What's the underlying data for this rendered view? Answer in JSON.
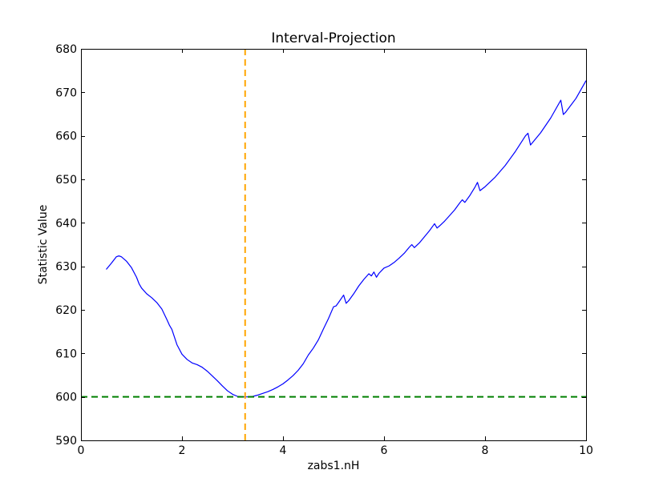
{
  "chart_data": {
    "type": "line",
    "title": "Interval-Projection",
    "xlabel": "zabs1.nH",
    "ylabel": "Statistic Value",
    "xlim": [
      0,
      10
    ],
    "ylim": [
      590,
      680
    ],
    "xticks": [
      0,
      2,
      4,
      6,
      8,
      10
    ],
    "yticks": [
      590,
      600,
      610,
      620,
      630,
      640,
      650,
      660,
      670,
      680
    ],
    "xtick_labels": [
      "0",
      "2",
      "4",
      "6",
      "8",
      "10"
    ],
    "ytick_labels": [
      "590",
      "600",
      "610",
      "620",
      "630",
      "640",
      "650",
      "660",
      "670",
      "680"
    ],
    "grid": false,
    "series": [
      {
        "color": "#0000ff",
        "x": [
          0.5,
          0.6,
          0.7,
          0.75,
          0.8,
          0.85,
          0.9,
          1.0,
          1.1,
          1.15,
          1.2,
          1.3,
          1.4,
          1.5,
          1.6,
          1.7,
          1.75,
          1.8,
          1.9,
          2.0,
          2.1,
          2.2,
          2.3,
          2.4,
          2.5,
          2.6,
          2.7,
          2.8,
          2.9,
          3.0,
          3.1,
          3.2,
          3.3,
          3.4,
          3.5,
          3.6,
          3.7,
          3.8,
          3.9,
          4.0,
          4.1,
          4.2,
          4.3,
          4.4,
          4.5,
          4.6,
          4.7,
          4.8,
          4.9,
          5.0,
          5.05,
          5.1,
          5.2,
          5.25,
          5.3,
          5.4,
          5.5,
          5.6,
          5.7,
          5.75,
          5.8,
          5.85,
          5.9,
          5.95,
          6.0,
          6.1,
          6.2,
          6.3,
          6.4,
          6.5,
          6.55,
          6.6,
          6.7,
          6.8,
          6.9,
          7.0,
          7.05,
          7.1,
          7.2,
          7.3,
          7.4,
          7.5,
          7.55,
          7.6,
          7.7,
          7.8,
          7.85,
          7.9,
          8.0,
          8.2,
          8.4,
          8.6,
          8.8,
          8.85,
          8.9,
          9.1,
          9.3,
          9.5,
          9.55,
          9.6,
          9.8,
          10.0
        ],
        "y": [
          629.3,
          630.7,
          632.2,
          632.4,
          632.2,
          631.7,
          631.2,
          629.7,
          627.5,
          626.0,
          625.0,
          623.7,
          622.8,
          621.7,
          620.2,
          617.8,
          616.5,
          615.5,
          612.0,
          609.8,
          608.6,
          607.8,
          607.4,
          606.8,
          605.9,
          604.8,
          603.7,
          602.5,
          601.4,
          600.6,
          600.1,
          600.0,
          600.0,
          600.1,
          600.4,
          600.8,
          601.2,
          601.7,
          602.3,
          603.0,
          603.9,
          604.9,
          606.1,
          607.6,
          609.6,
          611.2,
          613.1,
          615.6,
          618.0,
          620.7,
          620.9,
          621.7,
          623.4,
          621.5,
          622.1,
          623.7,
          625.5,
          627.0,
          628.3,
          627.8,
          628.7,
          627.5,
          628.4,
          629.0,
          629.6,
          630.1,
          630.9,
          631.9,
          633.0,
          634.4,
          635.0,
          634.3,
          635.4,
          636.8,
          638.2,
          639.8,
          638.8,
          639.3,
          640.4,
          641.7,
          643.0,
          644.6,
          645.3,
          644.7,
          646.3,
          648.2,
          649.3,
          647.4,
          648.3,
          650.5,
          653.2,
          656.4,
          660.0,
          660.6,
          657.9,
          660.7,
          664.1,
          668.2,
          664.9,
          665.5,
          668.6,
          672.7
        ]
      }
    ],
    "reference_lines": [
      {
        "orientation": "horizontal",
        "value": 600,
        "color": "#008000",
        "style": "dashed"
      },
      {
        "orientation": "vertical",
        "value": 3.25,
        "color": "#ffa500",
        "style": "dashed"
      }
    ]
  }
}
